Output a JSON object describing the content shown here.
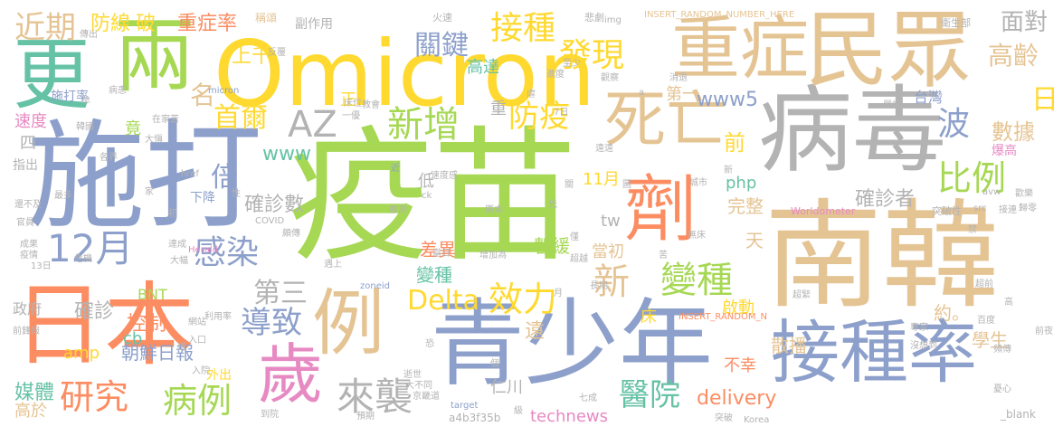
{
  "palette": {
    "green": "#a6d854",
    "blue": "#8da0cb",
    "orange": "#fc8d62",
    "tan": "#e5c494",
    "gray": "#b3b3b3",
    "teal": "#66c2a5",
    "yellow": "#ffd92f",
    "pink": "#e78ac3"
  },
  "words": [
    {
      "text": "疫苗",
      "color": "#a6d854"
    },
    {
      "text": "施打",
      "color": "#8da0cb"
    },
    {
      "text": "Omicron",
      "color": "#ffd92f"
    },
    {
      "text": "南韓",
      "color": "#e5c494"
    },
    {
      "text": "病毒",
      "color": "#b3b3b3"
    },
    {
      "text": "青少年",
      "color": "#8da0cb"
    },
    {
      "text": "日本",
      "color": "#fc8d62"
    },
    {
      "text": "民眾",
      "color": "#e5c494"
    },
    {
      "text": "接種率",
      "color": "#8da0cb"
    },
    {
      "text": "兩",
      "color": "#a6d854"
    },
    {
      "text": "更",
      "color": "#66c2a5"
    },
    {
      "text": "重症",
      "color": "#e5c494"
    },
    {
      "text": "死亡",
      "color": "#e5c494"
    },
    {
      "text": "劑",
      "color": "#fc8d62"
    },
    {
      "text": "例",
      "color": "#e5c494"
    },
    {
      "text": "歲",
      "color": "#e78ac3"
    },
    {
      "text": "AZ",
      "color": "#b3b3b3"
    },
    {
      "text": "12月",
      "color": "#8da0cb"
    },
    {
      "text": "新增",
      "color": "#a6d854"
    },
    {
      "text": "變種",
      "color": "#a6d854"
    },
    {
      "text": "Delta",
      "color": "#ffd92f"
    },
    {
      "text": "效力",
      "color": "#ffd92f"
    },
    {
      "text": "來襲",
      "color": "#b3b3b3"
    },
    {
      "text": "研究",
      "color": "#fc8d62"
    },
    {
      "text": "病例",
      "color": "#a6d854"
    },
    {
      "text": "感染",
      "color": "#8da0cb"
    },
    {
      "text": "導致",
      "color": "#8da0cb"
    },
    {
      "text": "比例",
      "color": "#a6d854"
    },
    {
      "text": "波",
      "color": "#8da0cb"
    },
    {
      "text": "接種",
      "color": "#ffd92f"
    },
    {
      "text": "發現",
      "color": "#ffd92f"
    },
    {
      "text": "關鍵",
      "color": "#8da0cb"
    },
    {
      "text": "防疫",
      "color": "#ffd92f"
    },
    {
      "text": "首爾",
      "color": "#ffd92f"
    },
    {
      "text": "近期",
      "color": "#e5c494"
    },
    {
      "text": "醫院",
      "color": "#66c2a5"
    },
    {
      "text": "高齡",
      "color": "#e5c494"
    },
    {
      "text": "面對",
      "color": "#b3b3b3"
    },
    {
      "text": "新",
      "color": "#e5c494"
    },
    {
      "text": "名",
      "color": "#e5c494"
    },
    {
      "text": "倍",
      "color": "#8da0cb"
    },
    {
      "text": "第三",
      "color": "#b3b3b3"
    },
    {
      "text": "防線",
      "color": "#ffd92f"
    },
    {
      "text": "破",
      "color": "#ffd92f"
    },
    {
      "text": "重症率",
      "color": "#fc8d62"
    },
    {
      "text": "上千",
      "color": "#ffd92f"
    },
    {
      "text": "日",
      "color": "#ffd92f"
    },
    {
      "text": "數據",
      "color": "#e5c494"
    },
    {
      "text": "前",
      "color": "#ffd92f"
    },
    {
      "text": "www5",
      "color": "#8da0cb"
    },
    {
      "text": "確診數",
      "color": "#b3b3b3"
    },
    {
      "text": "確診者",
      "color": "#b3b3b3"
    },
    {
      "text": "控制",
      "color": "#fc8d62"
    },
    {
      "text": "確診",
      "color": "#b3b3b3"
    },
    {
      "text": "媒體",
      "color": "#66c2a5"
    },
    {
      "text": "朝鮮日報",
      "color": "#8da0cb"
    },
    {
      "text": "technews",
      "color": "#e78ac3"
    },
    {
      "text": "delivery",
      "color": "#fc8d62"
    },
    {
      "text": "散播",
      "color": "#e5c494"
    },
    {
      "text": "學生",
      "color": "#e5c494"
    },
    {
      "text": "約。",
      "color": "#e5c494"
    },
    {
      "text": "高達",
      "color": "#66c2a5"
    },
    {
      "text": "速度",
      "color": "#e78ac3"
    },
    {
      "text": "差異",
      "color": "#fc8d62"
    },
    {
      "text": "暫緩",
      "color": "#a6d854"
    },
    {
      "text": "變種",
      "color": "#66c2a5"
    },
    {
      "text": "完整",
      "color": "#e5c494"
    },
    {
      "text": "php",
      "color": "#66c2a5"
    },
    {
      "text": "11月",
      "color": "#ffd92f"
    },
    {
      "text": "當初",
      "color": "#e5c494"
    },
    {
      "text": "tw",
      "color": "#b3b3b3"
    },
    {
      "text": "www",
      "color": "#66c2a5"
    },
    {
      "text": "amp",
      "color": "#ffd92f"
    },
    {
      "text": "cb",
      "color": "#66c2a5"
    },
    {
      "text": "仁川",
      "color": "#b3b3b3"
    },
    {
      "text": "不幸",
      "color": "#fc8d62"
    },
    {
      "text": "遠",
      "color": "#e5c494"
    },
    {
      "text": "床",
      "color": "#ffd92f"
    },
    {
      "text": "高於",
      "color": "#e5c494"
    },
    {
      "text": "政府",
      "color": "#b3b3b3"
    },
    {
      "text": "BNT",
      "color": "#a6d854"
    },
    {
      "text": "台灣",
      "color": "#8da0cb"
    },
    {
      "text": "第一",
      "color": "#e5c494"
    },
    {
      "text": "啟動",
      "color": "#ffd92f"
    },
    {
      "text": "天",
      "color": "#e5c494"
    },
    {
      "text": "低",
      "color": "#b3b3b3"
    },
    {
      "text": "竟",
      "color": "#a6d854"
    },
    {
      "text": "正",
      "color": "#ffd92f"
    },
    {
      "text": "副作用",
      "color": "#b3b3b3"
    },
    {
      "text": "稱頌",
      "color": "#e5c494"
    },
    {
      "text": "火速",
      "color": "#b3b3b3"
    },
    {
      "text": "悲劇",
      "color": "#b3b3b3"
    },
    {
      "text": "INSERT_RANDOM_NUMBER_HERE",
      "color": "#e5c494"
    },
    {
      "text": "衛生部",
      "color": "#b3b3b3"
    },
    {
      "text": "施打率",
      "color": "#8da0cb"
    },
    {
      "text": "指出",
      "color": "#b3b3b3"
    },
    {
      "text": "下降",
      "color": "#8da0cb"
    },
    {
      "text": "外出",
      "color": "#ffd92f"
    },
    {
      "text": "爆高",
      "color": "#e78ac3"
    },
    {
      "text": "突破性",
      "color": "#b3b3b3"
    },
    {
      "text": "Worldometer",
      "color": "#e78ac3"
    },
    {
      "text": "INSERT_RANDOM_N",
      "color": "#fc8d62"
    },
    {
      "text": "zoneid",
      "color": "#8da0cb"
    },
    {
      "text": "Herald",
      "color": "#e78ac3"
    },
    {
      "text": "COVID",
      "color": "#b3b3b3"
    },
    {
      "text": "target",
      "color": "#8da0cb"
    },
    {
      "text": "a4b3f35b",
      "color": "#b3b3b3"
    },
    {
      "text": "_blank",
      "color": "#b3b3b3"
    },
    {
      "text": "Korea",
      "color": "#b3b3b3"
    },
    {
      "text": "micron",
      "color": "#8da0cb"
    },
    {
      "text": "href",
      "color": "#b3b3b3"
    },
    {
      "text": "img",
      "color": "#b3b3b3"
    },
    {
      "text": "src",
      "color": "#b3b3b3"
    },
    {
      "text": "avw",
      "color": "#b3b3b3"
    },
    {
      "text": "ck",
      "color": "#b3b3b3"
    },
    {
      "text": "速度感",
      "color": "#b3b3b3"
    },
    {
      "text": "利用率",
      "color": "#b3b3b3"
    },
    {
      "text": "專家",
      "color": "#b3b3b3"
    },
    {
      "text": "沒想到",
      "color": "#b3b3b3"
    },
    {
      "text": "頻傳",
      "color": "#b3b3b3"
    },
    {
      "text": "百度",
      "color": "#b3b3b3"
    },
    {
      "text": "前夜",
      "color": "#b3b3b3"
    },
    {
      "text": "憂心",
      "color": "#b3b3b3"
    },
    {
      "text": "到院",
      "color": "#b3b3b3"
    },
    {
      "text": "預期",
      "color": "#b3b3b3"
    },
    {
      "text": "突破",
      "color": "#b3b3b3"
    },
    {
      "text": "京畿道",
      "color": "#b3b3b3"
    },
    {
      "text": "大不同",
      "color": "#b3b3b3"
    },
    {
      "text": "逝世",
      "color": "#b3b3b3"
    },
    {
      "text": "入口",
      "color": "#b3b3b3"
    },
    {
      "text": "網站",
      "color": "#b3b3b3"
    },
    {
      "text": "前鋒報",
      "color": "#b3b3b3"
    },
    {
      "text": "疫情",
      "color": "#b3b3b3"
    },
    {
      "text": "成果",
      "color": "#b3b3b3"
    },
    {
      "text": "官員",
      "color": "#b3b3b3"
    },
    {
      "text": "還不及",
      "color": "#b3b3b3"
    },
    {
      "text": "13日",
      "color": "#b3b3b3"
    },
    {
      "text": "危機",
      "color": "#b3b3b3"
    },
    {
      "text": "達成",
      "color": "#b3b3b3"
    },
    {
      "text": "大幅",
      "color": "#b3b3b3"
    },
    {
      "text": "超越",
      "color": "#b3b3b3"
    },
    {
      "text": "增加為",
      "color": "#b3b3b3"
    },
    {
      "text": "長期",
      "color": "#b3b3b3"
    },
    {
      "text": "無床",
      "color": "#b3b3b3"
    },
    {
      "text": "超前",
      "color": "#b3b3b3"
    },
    {
      "text": "接連",
      "color": "#b3b3b3"
    },
    {
      "text": "歸零",
      "color": "#b3b3b3"
    },
    {
      "text": "各界",
      "color": "#b3b3b3"
    },
    {
      "text": "在家苦",
      "color": "#b3b3b3"
    },
    {
      "text": "韓國",
      "color": "#b3b3b3"
    },
    {
      "text": "大愼",
      "color": "#b3b3b3"
    },
    {
      "text": "病患",
      "color": "#b3b3b3"
    },
    {
      "text": "教會",
      "color": "#b3b3b3"
    },
    {
      "text": "進度",
      "color": "#b3b3b3"
    },
    {
      "text": "至少",
      "color": "#b3b3b3"
    },
    {
      "text": "觀察",
      "color": "#b3b3b3"
    },
    {
      "text": "消退",
      "color": "#b3b3b3"
    },
    {
      "text": "嚴峻",
      "color": "#b3b3b3"
    },
    {
      "text": "城市",
      "color": "#b3b3b3"
    },
    {
      "text": "歡樂",
      "color": "#b3b3b3"
    },
    {
      "text": "遠遠",
      "color": "#b3b3b3"
    },
    {
      "text": "當日",
      "color": "#b3b3b3"
    },
    {
      "text": "原本",
      "color": "#b3b3b3"
    },
    {
      "text": "推測",
      "color": "#b3b3b3"
    },
    {
      "text": "遇上",
      "color": "#b3b3b3"
    },
    {
      "text": "頗傳",
      "color": "#b3b3b3"
    },
    {
      "text": "反覆",
      "color": "#b3b3b3"
    },
    {
      "text": "傳出",
      "color": "#b3b3b3"
    },
    {
      "text": "床位",
      "color": "#b3b3b3"
    },
    {
      "text": "7日",
      "color": "#b3b3b3"
    },
    {
      "text": "一優",
      "color": "#b3b3b3"
    },
    {
      "text": "七成",
      "color": "#b3b3b3"
    },
    {
      "text": "入院",
      "color": "#b3b3b3"
    },
    {
      "text": "最多",
      "color": "#b3b3b3"
    },
    {
      "text": "超緊",
      "color": "#b3b3b3"
    },
    {
      "text": "性",
      "color": "#b3b3b3"
    },
    {
      "text": "家",
      "color": "#b3b3b3"
    },
    {
      "text": "初",
      "color": "#b3b3b3"
    },
    {
      "text": "關",
      "color": "#b3b3b3"
    },
    {
      "text": "光",
      "color": "#b3b3b3"
    },
    {
      "text": "圖",
      "color": "#b3b3b3"
    },
    {
      "text": "苦",
      "color": "#b3b3b3"
    },
    {
      "text": "月",
      "color": "#b3b3b3"
    },
    {
      "text": "級",
      "color": "#b3b3b3"
    },
    {
      "text": "個",
      "color": "#b3b3b3"
    },
    {
      "text": "虐",
      "color": "#b3b3b3"
    },
    {
      "text": "高",
      "color": "#b3b3b3"
    },
    {
      "text": "恐",
      "color": "#b3b3b3"
    },
    {
      "text": "增",
      "color": "#b3b3b3"
    },
    {
      "text": "早",
      "color": "#b3b3b3"
    },
    {
      "text": "四",
      "color": "#b3b3b3"
    },
    {
      "text": "近",
      "color": "#8da0cb"
    },
    {
      "text": "a",
      "color": "#b3b3b3"
    },
    {
      "text": "新",
      "color": "#b3b3b3"
    },
    {
      "text": "禁",
      "color": "#b3b3b3"
    },
    {
      "text": "僅",
      "color": "#b3b3b3"
    },
    {
      "text": "重",
      "color": "#b3b3b3"
    },
    {
      "text": "三",
      "color": "#8da0cb"
    }
  ]
}
